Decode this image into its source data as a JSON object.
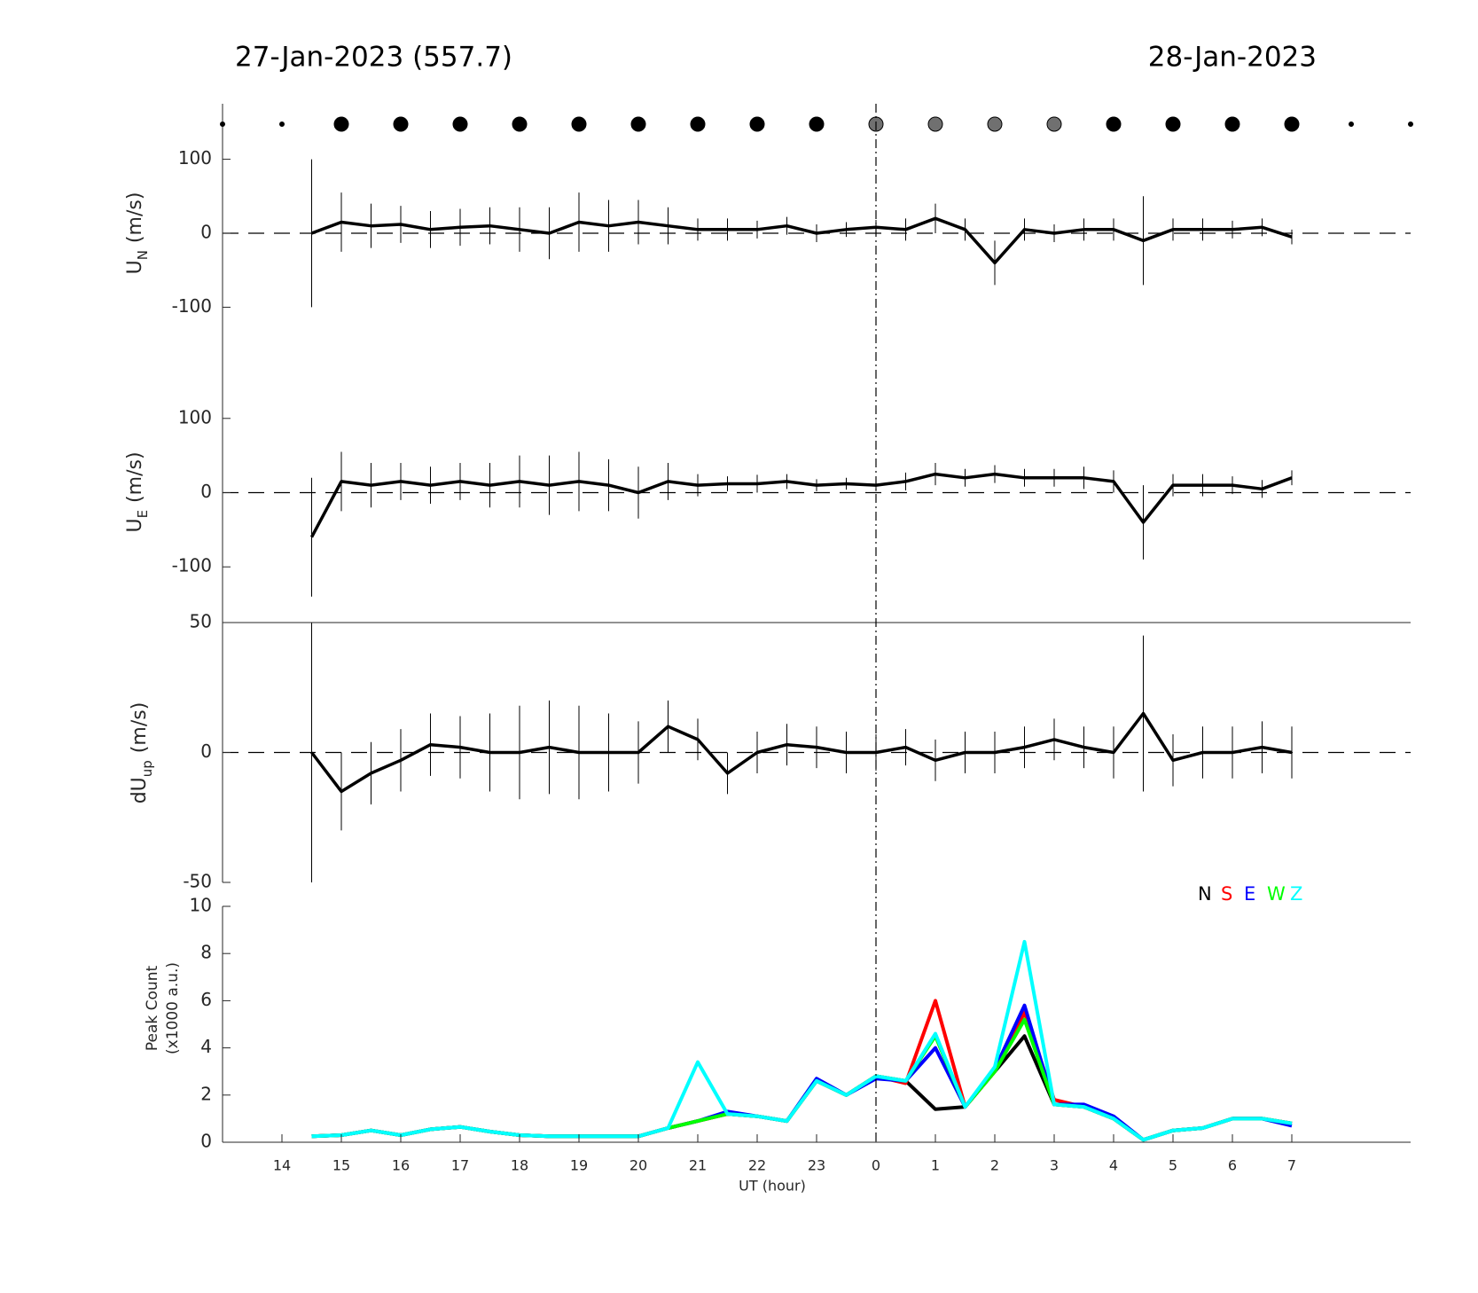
{
  "chart_data": [
    {
      "type": "errorbar",
      "title_left": "27-Jan-2023 (557.7)",
      "title_right": "28-Jan-2023",
      "ylabel": {
        "main": "U",
        "sub": "N",
        "unit": "(m/s)"
      },
      "xlim": [
        13,
        33
      ],
      "ylim": [
        -175,
        175
      ],
      "yticks": [
        -100,
        0,
        100
      ],
      "zero_line": true,
      "vline_x": 24,
      "color": "#000000",
      "x": [
        14.5,
        15,
        15.5,
        16,
        16.5,
        17,
        17.5,
        18,
        18.5,
        19,
        19.5,
        20,
        20.5,
        21,
        21.5,
        22,
        22.5,
        23,
        23.5,
        24,
        24.5,
        25,
        25.5,
        26,
        26.5,
        27,
        27.5,
        28,
        28.5,
        29,
        29.5,
        30,
        30.5,
        31
      ],
      "values": [
        0,
        15,
        10,
        12,
        5,
        8,
        10,
        5,
        0,
        15,
        10,
        15,
        10,
        5,
        5,
        5,
        10,
        0,
        5,
        8,
        5,
        20,
        5,
        -40,
        5,
        0,
        5,
        5,
        -10,
        5,
        5,
        5,
        8,
        -5
      ],
      "errors": [
        100,
        40,
        30,
        25,
        25,
        25,
        25,
        30,
        35,
        40,
        35,
        30,
        25,
        15,
        15,
        12,
        12,
        12,
        10,
        10,
        15,
        20,
        15,
        30,
        15,
        12,
        15,
        15,
        60,
        15,
        15,
        12,
        12,
        10
      ],
      "dots": {
        "x": [
          13,
          14,
          15,
          16,
          17,
          18,
          19,
          20,
          21,
          22,
          23,
          24,
          25,
          26,
          27,
          28,
          29,
          30,
          31,
          32,
          33
        ],
        "sizes": [
          2.5,
          2.5,
          8,
          8,
          8,
          8,
          8,
          8,
          8,
          8,
          8,
          8,
          8,
          8,
          8,
          8,
          8,
          8,
          8,
          2.5,
          2.5
        ],
        "colors": [
          "#000000",
          "#000000",
          "#000000",
          "#000000",
          "#000000",
          "#000000",
          "#000000",
          "#000000",
          "#000000",
          "#000000",
          "#000000",
          "#707070",
          "#707070",
          "#707070",
          "#707070",
          "#000000",
          "#000000",
          "#000000",
          "#000000",
          "#000000",
          "#000000"
        ]
      }
    },
    {
      "type": "errorbar",
      "ylabel": {
        "main": "U",
        "sub": "E",
        "unit": "(m/s)"
      },
      "xlim": [
        13,
        33
      ],
      "ylim": [
        -175,
        175
      ],
      "yticks": [
        -100,
        0,
        100
      ],
      "zero_line": true,
      "color": "#000000",
      "x": [
        14.5,
        15,
        15.5,
        16,
        16.5,
        17,
        17.5,
        18,
        18.5,
        19,
        19.5,
        20,
        20.5,
        21,
        21.5,
        22,
        22.5,
        23,
        23.5,
        24,
        24.5,
        25,
        25.5,
        26,
        26.5,
        27,
        27.5,
        28,
        28.5,
        29,
        29.5,
        30,
        30.5,
        31
      ],
      "values": [
        -60,
        15,
        10,
        15,
        10,
        15,
        10,
        15,
        10,
        15,
        10,
        0,
        15,
        10,
        12,
        12,
        15,
        10,
        12,
        10,
        15,
        25,
        20,
        25,
        20,
        20,
        20,
        15,
        -40,
        10,
        10,
        10,
        5,
        20
      ],
      "errors": [
        80,
        40,
        30,
        25,
        25,
        25,
        30,
        35,
        40,
        40,
        35,
        35,
        25,
        15,
        10,
        12,
        10,
        8,
        8,
        8,
        12,
        15,
        12,
        12,
        12,
        12,
        15,
        15,
        50,
        15,
        15,
        12,
        12,
        10
      ]
    },
    {
      "type": "errorbar",
      "ylabel": {
        "main": "dU",
        "sub": "up",
        "unit": "(m/s)"
      },
      "xlim": [
        13,
        33
      ],
      "ylim": [
        -50,
        50
      ],
      "yticks": [
        -50,
        0,
        50
      ],
      "zero_line": true,
      "color": "#000000",
      "x": [
        14.5,
        15,
        15.5,
        16,
        16.5,
        17,
        17.5,
        18,
        18.5,
        19,
        19.5,
        20,
        20.5,
        21,
        21.5,
        22,
        22.5,
        23,
        23.5,
        24,
        24.5,
        25,
        25.5,
        26,
        26.5,
        27,
        27.5,
        28,
        28.5,
        29,
        29.5,
        30,
        30.5,
        31
      ],
      "values": [
        0,
        -15,
        -8,
        -3,
        3,
        2,
        0,
        0,
        2,
        0,
        0,
        0,
        10,
        5,
        -8,
        0,
        3,
        2,
        0,
        0,
        2,
        -3,
        0,
        0,
        2,
        5,
        2,
        0,
        15,
        -3,
        0,
        0,
        2,
        0
      ],
      "errors": [
        50,
        15,
        12,
        12,
        12,
        12,
        15,
        18,
        18,
        18,
        15,
        12,
        10,
        8,
        8,
        8,
        8,
        8,
        8,
        7,
        7,
        8,
        8,
        8,
        8,
        8,
        8,
        10,
        30,
        10,
        10,
        10,
        10,
        10
      ]
    },
    {
      "type": "line",
      "ylabel": {
        "line1": "Peak Count",
        "line2": "(x1000 a.u.)"
      },
      "xlabel": "UT (hour)",
      "xlim": [
        13,
        33
      ],
      "ylim": [
        0,
        10
      ],
      "yticks": [
        0,
        2,
        4,
        6,
        8,
        10
      ],
      "xticks": [
        14,
        15,
        16,
        17,
        18,
        19,
        20,
        21,
        22,
        23,
        {
          "value": 24,
          "label": "0"
        },
        {
          "value": 25,
          "label": "1"
        },
        {
          "value": 26,
          "label": "2"
        },
        {
          "value": 27,
          "label": "3"
        },
        {
          "value": 28,
          "label": "4"
        },
        {
          "value": 29,
          "label": "5"
        },
        {
          "value": 30,
          "label": "6"
        },
        {
          "value": 31,
          "label": "7"
        }
      ],
      "x": [
        14.5,
        15,
        15.5,
        16,
        16.5,
        17,
        17.5,
        18,
        18.5,
        19,
        19.5,
        20,
        20.5,
        21,
        21.5,
        22,
        22.5,
        23,
        23.5,
        24,
        24.5,
        25,
        25.5,
        26,
        26.5,
        27,
        27.5,
        28,
        28.5,
        29,
        29.5,
        30,
        30.5,
        31
      ],
      "series": [
        {
          "name": "N",
          "color": "#000000",
          "values": [
            0.25,
            0.3,
            0.5,
            0.3,
            0.55,
            0.65,
            0.45,
            0.3,
            0.25,
            0.25,
            0.25,
            0.25,
            0.6,
            0.9,
            1.2,
            1.1,
            0.9,
            2.6,
            2.0,
            2.8,
            2.6,
            1.4,
            1.5,
            3.0,
            4.5,
            1.6,
            1.5,
            1.0,
            0.1,
            0.5,
            0.6,
            1.0,
            1.0,
            0.8
          ]
        },
        {
          "name": "S",
          "color": "#ff0000",
          "values": [
            0.25,
            0.3,
            0.5,
            0.3,
            0.55,
            0.65,
            0.45,
            0.3,
            0.25,
            0.25,
            0.25,
            0.25,
            0.6,
            0.9,
            1.2,
            1.1,
            0.9,
            2.6,
            2.0,
            2.8,
            2.5,
            6.0,
            1.5,
            3.0,
            5.5,
            1.8,
            1.5,
            1.0,
            0.1,
            0.5,
            0.6,
            1.0,
            1.0,
            0.8
          ]
        },
        {
          "name": "E",
          "color": "#0000ff",
          "values": [
            0.25,
            0.3,
            0.5,
            0.3,
            0.55,
            0.65,
            0.45,
            0.3,
            0.25,
            0.25,
            0.25,
            0.25,
            0.6,
            0.9,
            1.3,
            1.1,
            0.9,
            2.7,
            2.0,
            2.7,
            2.6,
            4.0,
            1.5,
            3.1,
            5.8,
            1.6,
            1.6,
            1.1,
            0.1,
            0.5,
            0.6,
            1.0,
            1.0,
            0.7
          ]
        },
        {
          "name": "W",
          "color": "#00ff00",
          "values": [
            0.25,
            0.3,
            0.5,
            0.3,
            0.55,
            0.65,
            0.45,
            0.3,
            0.25,
            0.25,
            0.25,
            0.25,
            0.6,
            0.9,
            1.2,
            1.1,
            0.9,
            2.6,
            2.0,
            2.8,
            2.6,
            4.5,
            1.5,
            3.0,
            5.2,
            1.6,
            1.5,
            1.0,
            0.1,
            0.5,
            0.6,
            1.0,
            1.0,
            0.8
          ]
        },
        {
          "name": "Z",
          "color": "#00ffff",
          "values": [
            0.25,
            0.3,
            0.5,
            0.3,
            0.55,
            0.65,
            0.45,
            0.3,
            0.25,
            0.25,
            0.25,
            0.25,
            0.6,
            3.4,
            1.2,
            1.1,
            0.9,
            2.6,
            2.0,
            2.8,
            2.6,
            4.6,
            1.5,
            3.2,
            8.5,
            1.6,
            1.5,
            1.0,
            0.1,
            0.5,
            0.6,
            1.0,
            1.0,
            0.8
          ]
        }
      ]
    }
  ]
}
